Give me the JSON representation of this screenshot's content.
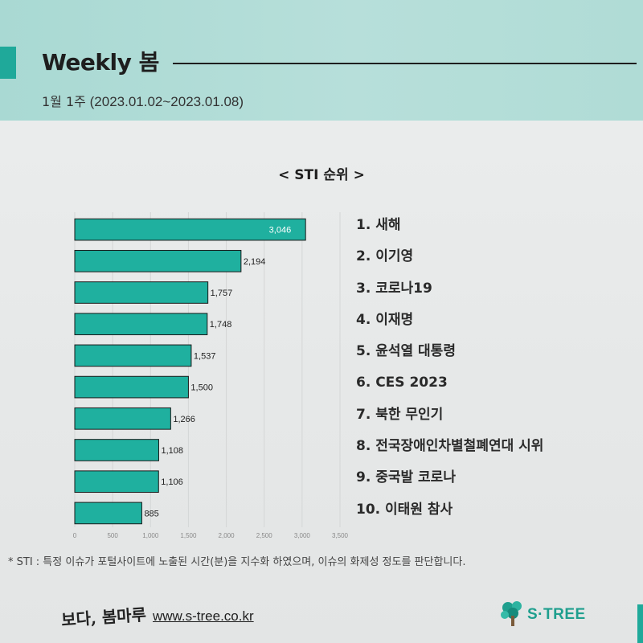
{
  "header": {
    "title": "Weekly 봄",
    "week": "1월 1주",
    "range": "(2023.01.02~2023.01.08)"
  },
  "chart_data": {
    "type": "bar",
    "orientation": "horizontal",
    "title": "< STI 순위 >",
    "xlabel": "",
    "ylabel": "",
    "xlim": [
      0,
      3500
    ],
    "x_ticks": [
      0,
      500,
      1000,
      1500,
      2000,
      2500,
      3000,
      3500
    ],
    "x_tick_labels": [
      "0",
      "500",
      "1,000",
      "1,500",
      "2,000",
      "2,500",
      "3,000",
      "3,500"
    ],
    "values": [
      3046,
      2194,
      1757,
      1748,
      1537,
      1500,
      1266,
      1108,
      1106,
      885
    ],
    "value_labels": [
      "3,046",
      "2,194",
      "1,757",
      "1,748",
      "1,537",
      "1,500",
      "1,266",
      "1,108",
      "1,106",
      "885"
    ],
    "bar_color": "#1fb09f",
    "grid": true
  },
  "ranking": [
    "1. 새해",
    "2. 이기영",
    "3. 코로나19",
    "4. 이재명",
    "5. 윤석열 대통령",
    "6. CES 2023",
    "7. 북한 무인기",
    "8. 전국장애인차별철폐연대 시위",
    "9. 중국발 코로나",
    "10. 이태원 참사"
  ],
  "footnote": "* STI : 특정 이슈가 포털사이트에 노출된 시간(분)을 지수화 하였으며, 이슈의 화제성 정도를 판단합니다.",
  "footer": {
    "slogan": "보다, 봄마루",
    "website": "www.s-tree.co.kr",
    "logo_text": "S·TREE"
  },
  "colors": {
    "accent": "#1fa99a",
    "header_bg": "#b0dcd6",
    "logo": "#1f9f8e"
  }
}
